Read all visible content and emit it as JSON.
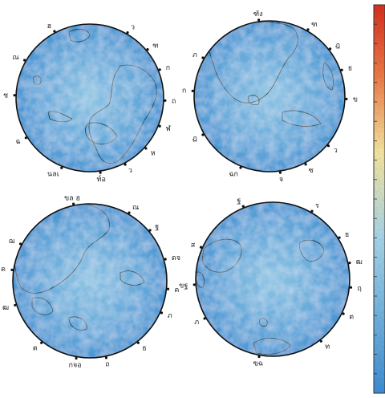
{
  "colors": {
    "ocean_deep": "#3f8fd0",
    "ocean": "#6fb0dd",
    "ocean_light": "#a9d3e8",
    "land_cool": "#d9e3a6",
    "land_mid": "#f0c27a",
    "land_warm": "#e07a4e",
    "land_hot": "#cf3f3a",
    "colorbar_top": "#d7301f",
    "colorbar_mid": "#f7e6a0",
    "colorbar_low": "#a8d5e8",
    "colorbar_bottom": "#3d8fd4"
  },
  "globes": [
    {
      "id": "top-left",
      "labels": [
        {
          "text": "ฮ",
          "angle": 118
        },
        {
          "text": "ว",
          "angle": 60
        },
        {
          "text": "ฑ",
          "angle": 40
        },
        {
          "text": "ก",
          "angle": 22
        },
        {
          "text": "ถ",
          "angle": -2
        },
        {
          "text": "ฬ",
          "angle": -22
        },
        {
          "text": "ห",
          "angle": -42
        },
        {
          "text": "ว",
          "angle": -62
        },
        {
          "text": "ท์อ",
          "angle": -82
        },
        {
          "text": "นลเ",
          "angle": -112
        },
        {
          "text": "ฉ",
          "angle": -148
        },
        {
          "text": "ช",
          "angle": 178
        },
        {
          "text": "ณ",
          "angle": 150
        }
      ]
    },
    {
      "id": "top-right",
      "labels": [
        {
          "text": "ฑัง",
          "angle": 98
        },
        {
          "text": "ฑ",
          "angle": 60
        },
        {
          "text": "ฎ",
          "angle": 38
        },
        {
          "text": "ธ",
          "angle": 20
        },
        {
          "text": "ข",
          "angle": -2
        },
        {
          "text": "ว",
          "angle": -40
        },
        {
          "text": "ซ",
          "angle": -62
        },
        {
          "text": "จ",
          "angle": -82
        },
        {
          "text": "ฉก",
          "angle": -112
        },
        {
          "text": "ฏ",
          "angle": -150
        },
        {
          "text": "ก",
          "angle": 176
        },
        {
          "text": "ภ",
          "angle": 150
        }
      ]
    },
    {
      "id": "bottom-left",
      "labels": [
        {
          "text": "ขล ฮ",
          "angle": 102
        },
        {
          "text": "ณ",
          "angle": 60
        },
        {
          "text": "ฐ",
          "angle": 40
        },
        {
          "text": "ดจ",
          "angle": 16
        },
        {
          "text": "ค",
          "angle": -6
        },
        {
          "text": "ภ",
          "angle": -24
        },
        {
          "text": "ธ",
          "angle": -52
        },
        {
          "text": "ถ",
          "angle": -78
        },
        {
          "text": "กจอ",
          "angle": -100
        },
        {
          "text": "ต",
          "angle": -128
        },
        {
          "text": "ฒ",
          "angle": -162
        },
        {
          "text": "ค",
          "angle": 172
        },
        {
          "text": "ฌ",
          "angle": 152
        }
      ]
    },
    {
      "id": "bottom-right",
      "labels": [
        {
          "text": "ฐ",
          "angle": 112
        },
        {
          "text": "ร",
          "angle": 60
        },
        {
          "text": "ธ",
          "angle": 32
        },
        {
          "text": "ฒ",
          "angle": 12
        },
        {
          "text": "ฤ",
          "angle": -6
        },
        {
          "text": "ต",
          "angle": -26
        },
        {
          "text": "ท",
          "angle": -52
        },
        {
          "text": "ฃฉ",
          "angle": -100
        },
        {
          "text": "ภ",
          "angle": -150
        },
        {
          "text": "ขฐ",
          "angle": -176
        },
        {
          "text": "ส",
          "angle": 156
        }
      ]
    }
  ]
}
